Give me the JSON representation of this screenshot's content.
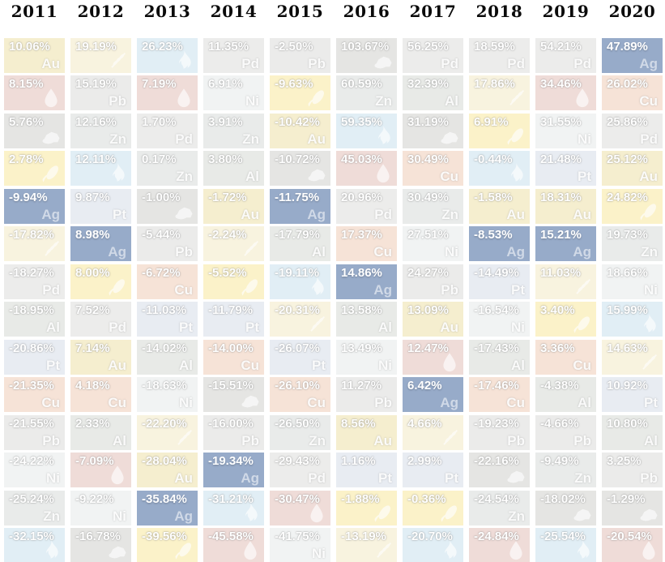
{
  "page": {
    "background": "#ffffff",
    "highlight_color": "#97abc9"
  },
  "header": {
    "years": [
      "2011",
      "2012",
      "2013",
      "2014",
      "2015",
      "2016",
      "2017",
      "2018",
      "2019",
      "2020"
    ]
  },
  "commodities": {
    "Gold": {
      "symbol": "Au",
      "bg": "#f5eecf"
    },
    "Silver": {
      "symbol": "Ag",
      "bg": "#97abc9",
      "highlight": true
    },
    "Copper": {
      "symbol": "Cu",
      "bg": "#f6e3d7"
    },
    "Lead": {
      "symbol": "Pb",
      "bg": "#ebebea"
    },
    "Zinc": {
      "symbol": "Zn",
      "bg": "#e9ebea"
    },
    "Nickel": {
      "symbol": "Ni",
      "bg": "#f1f3f3"
    },
    "Aluminum": {
      "symbol": "Al",
      "bg": "#e8eae7"
    },
    "Platinum": {
      "symbol": "Pt",
      "bg": "#e8ecf2"
    },
    "Palladium": {
      "symbol": "Pd",
      "bg": "#ececeb"
    },
    "Oil": {
      "icon": "oil-droplet-icon",
      "bg": "#efdcd8"
    },
    "Natural Gas": {
      "icon": "gas-flame-icon",
      "bg": "#e1eef5"
    },
    "Coal": {
      "icon": "coal-nugget-icon",
      "bg": "#e5e5e3"
    },
    "Corn": {
      "icon": "corn-cob-icon",
      "bg": "#fbf2c9"
    },
    "Wheat": {
      "icon": "wheat-stalk-icon",
      "bg": "#f8f3df"
    }
  },
  "chart_data": {
    "type": "heatmap",
    "layout": "ranked-columns-by-year",
    "highlighted_commodity": "Silver",
    "columns": [
      "2011",
      "2012",
      "2013",
      "2014",
      "2015",
      "2016",
      "2017",
      "2018",
      "2019",
      "2020"
    ],
    "cells": {
      "2011": [
        {
          "value": "10.06%",
          "commodity": "Gold"
        },
        {
          "value": "8.15%",
          "commodity": "Oil"
        },
        {
          "value": "5.76%",
          "commodity": "Coal"
        },
        {
          "value": "2.78%",
          "commodity": "Corn"
        },
        {
          "value": "-9.94%",
          "commodity": "Silver"
        },
        {
          "value": "-17.82%",
          "commodity": "Wheat"
        },
        {
          "value": "-18.27%",
          "commodity": "Palladium"
        },
        {
          "value": "-18.95%",
          "commodity": "Aluminum"
        },
        {
          "value": "-20.86%",
          "commodity": "Platinum"
        },
        {
          "value": "-21.35%",
          "commodity": "Copper"
        },
        {
          "value": "-21.55%",
          "commodity": "Lead"
        },
        {
          "value": "-24.22%",
          "commodity": "Nickel"
        },
        {
          "value": "-25.24%",
          "commodity": "Zinc"
        },
        {
          "value": "-32.15%",
          "commodity": "Natural Gas"
        }
      ],
      "2012": [
        {
          "value": "19.19%",
          "commodity": "Wheat"
        },
        {
          "value": "15.19%",
          "commodity": "Lead"
        },
        {
          "value": "12.16%",
          "commodity": "Zinc"
        },
        {
          "value": "12.11%",
          "commodity": "Natural Gas"
        },
        {
          "value": "9.87%",
          "commodity": "Platinum"
        },
        {
          "value": "8.98%",
          "commodity": "Silver"
        },
        {
          "value": "8.00%",
          "commodity": "Corn"
        },
        {
          "value": "7.52%",
          "commodity": "Palladium"
        },
        {
          "value": "7.14%",
          "commodity": "Gold"
        },
        {
          "value": "4.18%",
          "commodity": "Copper"
        },
        {
          "value": "2.33%",
          "commodity": "Aluminum"
        },
        {
          "value": "-7.09%",
          "commodity": "Oil"
        },
        {
          "value": "-9.22%",
          "commodity": "Nickel"
        },
        {
          "value": "-16.78%",
          "commodity": "Coal"
        }
      ],
      "2013": [
        {
          "value": "26.23%",
          "commodity": "Natural Gas"
        },
        {
          "value": "7.19%",
          "commodity": "Oil"
        },
        {
          "value": "1.70%",
          "commodity": "Palladium"
        },
        {
          "value": "0.17%",
          "commodity": "Zinc"
        },
        {
          "value": "-1.00%",
          "commodity": "Coal"
        },
        {
          "value": "-5.44%",
          "commodity": "Lead"
        },
        {
          "value": "-6.72%",
          "commodity": "Copper"
        },
        {
          "value": "-11.03%",
          "commodity": "Platinum"
        },
        {
          "value": "-14.02%",
          "commodity": "Aluminum"
        },
        {
          "value": "-18.63%",
          "commodity": "Nickel"
        },
        {
          "value": "-22.20%",
          "commodity": "Wheat"
        },
        {
          "value": "-28.04%",
          "commodity": "Gold"
        },
        {
          "value": "-35.84%",
          "commodity": "Silver"
        },
        {
          "value": "-39.56%",
          "commodity": "Corn"
        }
      ],
      "2014": [
        {
          "value": "11.35%",
          "commodity": "Palladium"
        },
        {
          "value": "6.91%",
          "commodity": "Nickel"
        },
        {
          "value": "3.91%",
          "commodity": "Zinc"
        },
        {
          "value": "3.80%",
          "commodity": "Aluminum"
        },
        {
          "value": "-1.72%",
          "commodity": "Gold"
        },
        {
          "value": "-2.24%",
          "commodity": "Wheat"
        },
        {
          "value": "-5.52%",
          "commodity": "Corn"
        },
        {
          "value": "-11.79%",
          "commodity": "Platinum"
        },
        {
          "value": "-14.00%",
          "commodity": "Copper"
        },
        {
          "value": "-15.51%",
          "commodity": "Coal"
        },
        {
          "value": "-16.00%",
          "commodity": "Lead"
        },
        {
          "value": "-19.34%",
          "commodity": "Silver"
        },
        {
          "value": "-31.21%",
          "commodity": "Natural Gas"
        },
        {
          "value": "-45.58%",
          "commodity": "Oil"
        }
      ],
      "2015": [
        {
          "value": "-2.50%",
          "commodity": "Lead"
        },
        {
          "value": "-9.63%",
          "commodity": "Corn"
        },
        {
          "value": "-10.42%",
          "commodity": "Gold"
        },
        {
          "value": "-10.72%",
          "commodity": "Coal"
        },
        {
          "value": "-11.75%",
          "commodity": "Silver"
        },
        {
          "value": "-17.79%",
          "commodity": "Aluminum"
        },
        {
          "value": "-19.11%",
          "commodity": "Natural Gas"
        },
        {
          "value": "-20.31%",
          "commodity": "Wheat"
        },
        {
          "value": "-26.07%",
          "commodity": "Platinum"
        },
        {
          "value": "-26.10%",
          "commodity": "Copper"
        },
        {
          "value": "-26.50%",
          "commodity": "Zinc"
        },
        {
          "value": "-29.43%",
          "commodity": "Palladium"
        },
        {
          "value": "-30.47%",
          "commodity": "Oil"
        },
        {
          "value": "-41.75%",
          "commodity": "Nickel"
        }
      ],
      "2016": [
        {
          "value": "103.67%",
          "commodity": "Coal"
        },
        {
          "value": "60.59%",
          "commodity": "Zinc"
        },
        {
          "value": "59.35%",
          "commodity": "Natural Gas"
        },
        {
          "value": "45.03%",
          "commodity": "Oil"
        },
        {
          "value": "20.96%",
          "commodity": "Palladium"
        },
        {
          "value": "17.37%",
          "commodity": "Copper"
        },
        {
          "value": "14.86%",
          "commodity": "Silver"
        },
        {
          "value": "13.58%",
          "commodity": "Aluminum"
        },
        {
          "value": "13.49%",
          "commodity": "Nickel"
        },
        {
          "value": "11.27%",
          "commodity": "Lead"
        },
        {
          "value": "8.56%",
          "commodity": "Gold"
        },
        {
          "value": "1.16%",
          "commodity": "Platinum"
        },
        {
          "value": "-1.88%",
          "commodity": "Corn"
        },
        {
          "value": "-13.19%",
          "commodity": "Wheat"
        }
      ],
      "2017": [
        {
          "value": "56.25%",
          "commodity": "Palladium"
        },
        {
          "value": "32.39%",
          "commodity": "Aluminum"
        },
        {
          "value": "31.19%",
          "commodity": "Coal"
        },
        {
          "value": "30.49%",
          "commodity": "Copper"
        },
        {
          "value": "30.49%",
          "commodity": "Zinc"
        },
        {
          "value": "27.51%",
          "commodity": "Nickel"
        },
        {
          "value": "24.27%",
          "commodity": "Lead"
        },
        {
          "value": "13.09%",
          "commodity": "Gold"
        },
        {
          "value": "12.47%",
          "commodity": "Oil"
        },
        {
          "value": "6.42%",
          "commodity": "Silver"
        },
        {
          "value": "4.66%",
          "commodity": "Wheat"
        },
        {
          "value": "2.99%",
          "commodity": "Platinum"
        },
        {
          "value": "-0.36%",
          "commodity": "Corn"
        },
        {
          "value": "-20.70%",
          "commodity": "Natural Gas"
        }
      ],
      "2018": [
        {
          "value": "18.59%",
          "commodity": "Palladium"
        },
        {
          "value": "17.86%",
          "commodity": "Wheat"
        },
        {
          "value": "6.91%",
          "commodity": "Corn"
        },
        {
          "value": "-0.44%",
          "commodity": "Natural Gas"
        },
        {
          "value": "-1.58%",
          "commodity": "Gold"
        },
        {
          "value": "-8.53%",
          "commodity": "Silver"
        },
        {
          "value": "-14.49%",
          "commodity": "Platinum"
        },
        {
          "value": "-16.54%",
          "commodity": "Nickel"
        },
        {
          "value": "-17.43%",
          "commodity": "Aluminum"
        },
        {
          "value": "-17.46%",
          "commodity": "Copper"
        },
        {
          "value": "-19.23%",
          "commodity": "Lead"
        },
        {
          "value": "-22.16%",
          "commodity": "Coal"
        },
        {
          "value": "-24.54%",
          "commodity": "Zinc"
        },
        {
          "value": "-24.84%",
          "commodity": "Oil"
        }
      ],
      "2019": [
        {
          "value": "54.21%",
          "commodity": "Palladium"
        },
        {
          "value": "34.46%",
          "commodity": "Oil"
        },
        {
          "value": "31.55%",
          "commodity": "Nickel"
        },
        {
          "value": "21.48%",
          "commodity": "Platinum"
        },
        {
          "value": "18.31%",
          "commodity": "Gold"
        },
        {
          "value": "15.21%",
          "commodity": "Silver"
        },
        {
          "value": "11.03%",
          "commodity": "Wheat"
        },
        {
          "value": "3.40%",
          "commodity": "Corn"
        },
        {
          "value": "3.36%",
          "commodity": "Copper"
        },
        {
          "value": "-4.38%",
          "commodity": "Aluminum"
        },
        {
          "value": "-4.66%",
          "commodity": "Lead"
        },
        {
          "value": "-9.49%",
          "commodity": "Zinc"
        },
        {
          "value": "-18.02%",
          "commodity": "Coal"
        },
        {
          "value": "-25.54%",
          "commodity": "Natural Gas"
        }
      ],
      "2020": [
        {
          "value": "47.89%",
          "commodity": "Silver"
        },
        {
          "value": "26.02%",
          "commodity": "Copper"
        },
        {
          "value": "25.86%",
          "commodity": "Palladium"
        },
        {
          "value": "25.12%",
          "commodity": "Gold"
        },
        {
          "value": "24.82%",
          "commodity": "Corn"
        },
        {
          "value": "19.73%",
          "commodity": "Zinc"
        },
        {
          "value": "18.66%",
          "commodity": "Nickel"
        },
        {
          "value": "15.99%",
          "commodity": "Natural Gas"
        },
        {
          "value": "14.63%",
          "commodity": "Wheat"
        },
        {
          "value": "10.92%",
          "commodity": "Platinum"
        },
        {
          "value": "10.80%",
          "commodity": "Aluminum"
        },
        {
          "value": "3.25%",
          "commodity": "Lead"
        },
        {
          "value": "-1.29%",
          "commodity": "Coal"
        },
        {
          "value": "-20.54%",
          "commodity": "Oil"
        }
      ]
    }
  }
}
